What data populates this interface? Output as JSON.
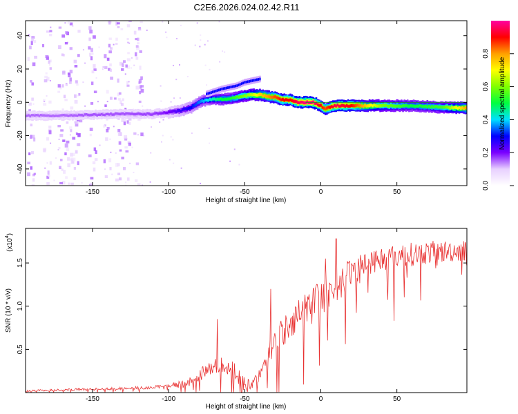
{
  "title": "C2E6.2026.024.02.42.R11",
  "chart_data": [
    {
      "type": "heatmap",
      "xlabel": "Height of straight line (km)",
      "ylabel": "Frequency (Hz)",
      "xlim": [
        -194,
        96
      ],
      "ylim": [
        -50,
        49
      ],
      "xticks": [
        -150,
        -100,
        -50,
        0,
        50
      ],
      "xtick_labels": [
        "-150",
        "-100",
        "-50",
        "0",
        "50"
      ],
      "yticks": [
        -40,
        -20,
        0,
        20,
        40
      ],
      "ytick_labels": [
        "-40",
        "-20",
        "0",
        "20",
        "40"
      ],
      "ridge": {
        "x": [
          -194,
          -170,
          -150,
          -130,
          -110,
          -100,
          -92,
          -85,
          -80,
          -75,
          -70,
          -65,
          -60,
          -55,
          -50,
          -45,
          -40,
          -35,
          -30,
          -25,
          -20,
          -15,
          -10,
          -5,
          0,
          3,
          6,
          10,
          20,
          40,
          60,
          80,
          96
        ],
        "y": [
          -8,
          -8,
          -7.5,
          -7,
          -7,
          -6,
          -5,
          -3,
          0,
          1.5,
          2,
          2,
          2,
          3,
          4,
          4.5,
          4.5,
          3.5,
          3,
          1.5,
          1.5,
          0,
          0,
          0,
          -2,
          -4,
          -3,
          -2,
          -2,
          -2,
          -2,
          -3,
          -3.5
        ],
        "amplitude": [
          0.15,
          0.15,
          0.16,
          0.16,
          0.17,
          0.2,
          0.25,
          0.3,
          0.35,
          0.4,
          0.45,
          0.5,
          0.5,
          0.55,
          0.6,
          0.65,
          0.75,
          0.8,
          0.85,
          0.9,
          0.9,
          0.95,
          0.98,
          0.98,
          0.9,
          0.85,
          0.9,
          0.95,
          0.9,
          0.6,
          0.5,
          0.55,
          0.8
        ]
      },
      "upper_branch": {
        "x": [
          -75,
          -65,
          -55,
          -50,
          -45,
          -40
        ],
        "y": [
          5,
          8,
          10,
          12,
          13,
          14
        ]
      }
    },
    {
      "type": "colorbar",
      "label": "Normalized spectral amplitude",
      "range": [
        0,
        1
      ],
      "ticks": [
        0.0,
        0.2,
        0.4,
        0.6,
        0.8
      ],
      "tick_labels": [
        "0.0",
        "0.2",
        "0.4",
        "0.6",
        "0.8"
      ],
      "colors": [
        "#ffffff",
        "#e8d0ff",
        "#7a00ff",
        "#0000ff",
        "#00e0ff",
        "#00ff40",
        "#80ff00",
        "#ffff00",
        "#ffa000",
        "#ff0000",
        "#ff00a0"
      ]
    },
    {
      "type": "line",
      "xlabel": "Height of straight line (km)",
      "ylabel": "SNR (10 * v/v)",
      "multiplier": "(x10",
      "multiplier_exp": "4",
      "multiplier_close": ")",
      "xlim": [
        -194,
        96
      ],
      "ylim": [
        0,
        1.9
      ],
      "xticks": [
        -150,
        -100,
        -50,
        0,
        50
      ],
      "xtick_labels": [
        "-150",
        "-100",
        "-50",
        "0",
        "50"
      ],
      "yticks": [
        0.5,
        1.0,
        1.5
      ],
      "ytick_labels": [
        "0.5",
        "1.0",
        "1.5"
      ],
      "line_color": "#e83030",
      "trend": {
        "x": [
          -194,
          -150,
          -110,
          -100,
          -90,
          -85,
          -80,
          -75,
          -70,
          -65,
          -60,
          -56,
          -52,
          -48,
          -44,
          -40,
          -36,
          -33,
          -30,
          -25,
          -20,
          -15,
          -10,
          -5,
          0,
          5,
          10,
          15,
          20,
          25,
          30,
          40,
          50,
          60,
          70,
          80,
          96
        ],
        "y": [
          0.02,
          0.04,
          0.06,
          0.08,
          0.1,
          0.13,
          0.2,
          0.25,
          0.3,
          0.33,
          0.3,
          0.25,
          0.12,
          0.08,
          0.1,
          0.2,
          0.35,
          0.5,
          0.6,
          0.7,
          0.8,
          0.9,
          1.0,
          1.05,
          1.1,
          1.15,
          1.2,
          1.3,
          1.4,
          1.45,
          1.5,
          1.55,
          1.58,
          1.6,
          1.62,
          1.63,
          1.65
        ]
      },
      "noise_amplitude": {
        "x": [
          -194,
          -100,
          -80,
          -60,
          -40,
          -30,
          0,
          30,
          96
        ],
        "y": [
          0.02,
          0.04,
          0.15,
          0.2,
          0.15,
          0.35,
          0.4,
          0.3,
          0.25
        ]
      },
      "spikes": [
        {
          "x": -68,
          "y": 0.85
        },
        {
          "x": -33,
          "y": 1.2
        },
        {
          "x": 10,
          "y": 1.78
        },
        {
          "x": 3,
          "y": 1.55
        }
      ]
    }
  ]
}
